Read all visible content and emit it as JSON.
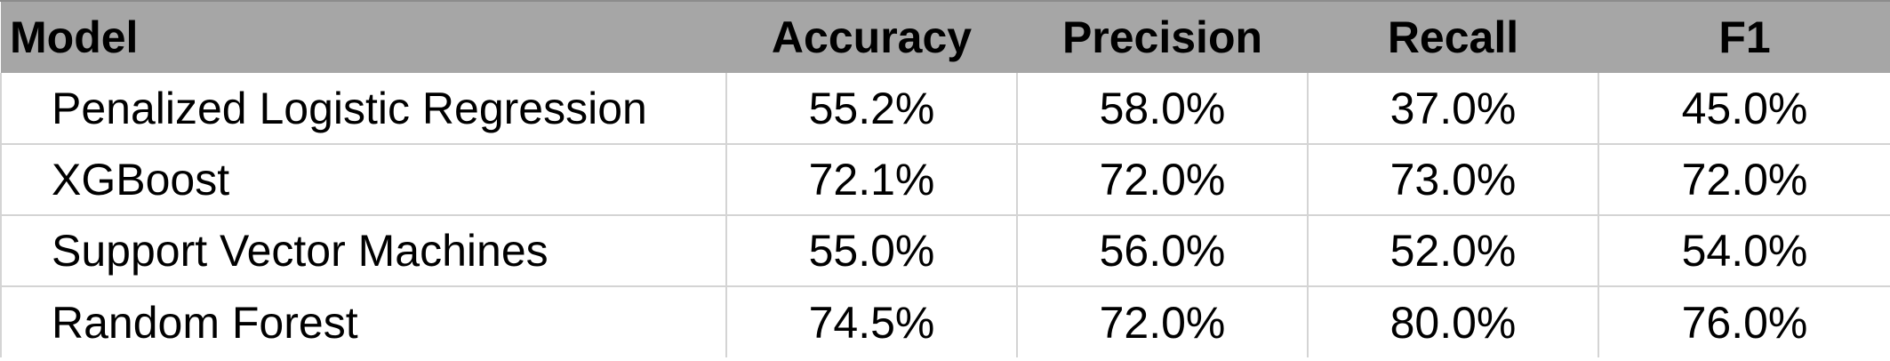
{
  "table": {
    "headers": [
      "Model",
      "Accuracy",
      "Precision",
      "Recall",
      "F1"
    ],
    "rows": [
      [
        "Penalized Logistic Regression",
        "55.2%",
        "58.0%",
        "37.0%",
        "45.0%"
      ],
      [
        "XGBoost",
        "72.1%",
        "72.0%",
        "73.0%",
        "72.0%"
      ],
      [
        "Support Vector Machines",
        "55.0%",
        "56.0%",
        "52.0%",
        "54.0%"
      ],
      [
        "Random Forest",
        "74.5%",
        "72.0%",
        "80.0%",
        "76.0%"
      ]
    ]
  },
  "colors": {
    "header_bg": "#a6a6a6",
    "grid": "#d4d4d4",
    "text": "#000000"
  }
}
